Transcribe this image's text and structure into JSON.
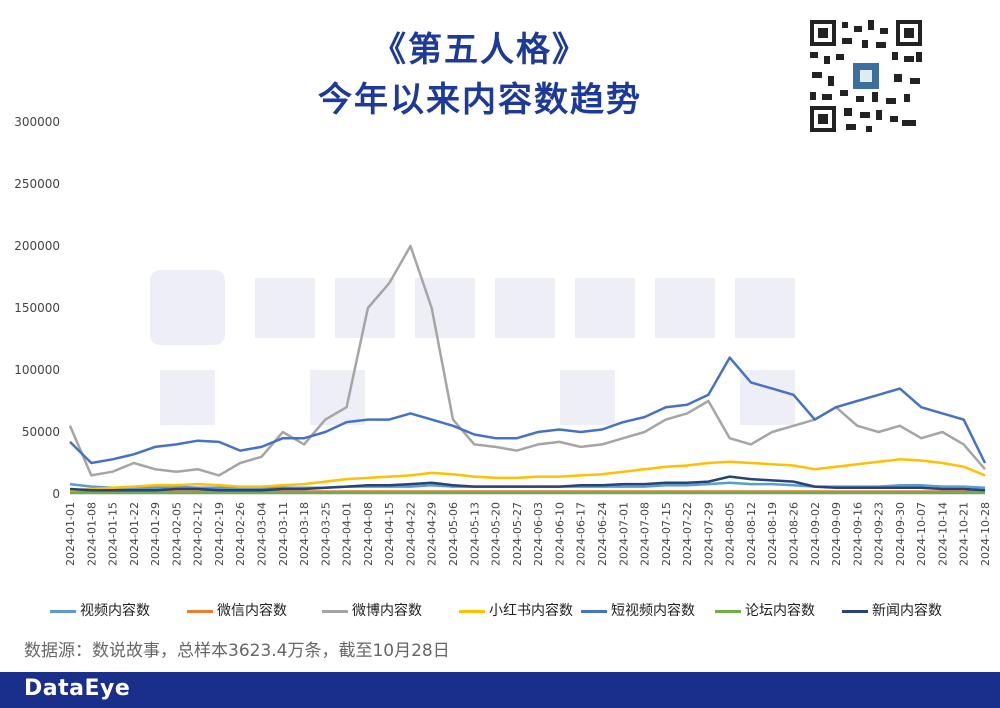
{
  "title_line1": "《第五人格》",
  "title_line2": "今年以来内容数趋势",
  "source": "数据源：数说故事，总样本3623.4万条，截至10月28日",
  "brand": "DataEye",
  "chart_data": {
    "type": "line",
    "ylim": [
      0,
      300000
    ],
    "yticks": [
      "0",
      "50000",
      "100000",
      "150000",
      "200000",
      "250000",
      "300000"
    ],
    "xticks": [
      "2024-01-01",
      "2024-01-08",
      "2024-01-15",
      "2024-01-22",
      "2024-01-29",
      "2024-02-05",
      "2024-02-12",
      "2024-02-19",
      "2024-02-26",
      "2024-03-04",
      "2024-03-11",
      "2024-03-18",
      "2024-03-25",
      "2024-04-01",
      "2024-04-08",
      "2024-04-15",
      "2024-04-22",
      "2024-04-29",
      "2024-05-06",
      "2024-05-13",
      "2024-05-20",
      "2024-05-27",
      "2024-06-03",
      "2024-06-10",
      "2024-06-17",
      "2024-06-24",
      "2024-07-01",
      "2024-07-08",
      "2024-07-15",
      "2024-07-22",
      "2024-07-29",
      "2024-08-05",
      "2024-08-12",
      "2024-08-19",
      "2024-08-26",
      "2024-09-02",
      "2024-09-09",
      "2024-09-16",
      "2024-09-23",
      "2024-09-30",
      "2024-10-07",
      "2024-10-14",
      "2024-10-21",
      "2024-10-28"
    ],
    "grid": false,
    "legend_position": "bottom",
    "series": [
      {
        "name": "视频内容数",
        "color": "#5b9bd5",
        "values": [
          8000,
          6000,
          5000,
          5000,
          5000,
          6000,
          5000,
          5000,
          5000,
          5000,
          5000,
          5000,
          5000,
          6000,
          6000,
          6000,
          6000,
          7000,
          6000,
          6000,
          6000,
          6000,
          6000,
          6000,
          6000,
          6000,
          6000,
          6000,
          7000,
          7000,
          8000,
          9000,
          8000,
          8000,
          7000,
          6000,
          6000,
          6000,
          6000,
          7000,
          7000,
          6000,
          6000,
          5000
        ]
      },
      {
        "name": "微信内容数",
        "color": "#ed7d31",
        "values": [
          2000,
          2000,
          2000,
          2000,
          2000,
          2000,
          2000,
          2000,
          2000,
          2000,
          2000,
          2000,
          2000,
          2000,
          2000,
          2000,
          2000,
          2000,
          2000,
          2000,
          2000,
          2000,
          2000,
          2000,
          2000,
          2000,
          2000,
          2000,
          2000,
          2000,
          2000,
          2000,
          2000,
          2000,
          2000,
          2000,
          2000,
          2000,
          2000,
          2000,
          2000,
          2000,
          2000,
          2000
        ]
      },
      {
        "name": "微博内容数",
        "color": "#a5a5a5",
        "values": [
          55000,
          15000,
          18000,
          25000,
          20000,
          18000,
          20000,
          15000,
          25000,
          30000,
          50000,
          40000,
          60000,
          70000,
          150000,
          170000,
          200000,
          150000,
          60000,
          40000,
          38000,
          35000,
          40000,
          42000,
          38000,
          40000,
          45000,
          50000,
          60000,
          65000,
          75000,
          45000,
          40000,
          50000,
          55000,
          60000,
          70000,
          55000,
          50000,
          55000,
          45000,
          50000,
          40000,
          20000
        ]
      },
      {
        "name": "小红书内容数",
        "color": "#ffc000",
        "values": [
          3000,
          4000,
          5000,
          6000,
          7000,
          7000,
          8000,
          7000,
          6000,
          6000,
          7000,
          8000,
          10000,
          12000,
          13000,
          14000,
          15000,
          17000,
          16000,
          14000,
          13000,
          13000,
          14000,
          14000,
          15000,
          16000,
          18000,
          20000,
          22000,
          23000,
          25000,
          26000,
          25000,
          24000,
          23000,
          20000,
          22000,
          24000,
          26000,
          28000,
          27000,
          25000,
          22000,
          15000
        ]
      },
      {
        "name": "短视频内容数",
        "color": "#4472c4",
        "values": [
          42000,
          25000,
          28000,
          32000,
          38000,
          40000,
          43000,
          42000,
          35000,
          38000,
          45000,
          45000,
          50000,
          58000,
          60000,
          60000,
          65000,
          60000,
          55000,
          48000,
          45000,
          45000,
          50000,
          52000,
          50000,
          52000,
          58000,
          62000,
          70000,
          72000,
          80000,
          110000,
          90000,
          85000,
          80000,
          60000,
          70000,
          75000,
          80000,
          85000,
          70000,
          65000,
          60000,
          25000
        ]
      },
      {
        "name": "论坛内容数",
        "color": "#70ad47",
        "values": [
          1000,
          1000,
          1000,
          1000,
          1000,
          1000,
          1000,
          1000,
          1000,
          1000,
          1000,
          1000,
          1000,
          1000,
          1000,
          1000,
          1000,
          1000,
          1000,
          1000,
          1000,
          1000,
          1000,
          1000,
          1000,
          1000,
          1000,
          1000,
          1000,
          1000,
          1000,
          1000,
          1000,
          1000,
          1000,
          1000,
          1000,
          1000,
          1000,
          1000,
          1000,
          1000,
          1000,
          1000
        ]
      },
      {
        "name": "新闻内容数",
        "color": "#264478",
        "values": [
          4000,
          3000,
          3000,
          3000,
          3000,
          4000,
          4000,
          3000,
          3000,
          3000,
          4000,
          4000,
          5000,
          6000,
          7000,
          7000,
          8000,
          9000,
          7000,
          6000,
          6000,
          6000,
          6000,
          6000,
          7000,
          7000,
          8000,
          8000,
          9000,
          9000,
          10000,
          14000,
          12000,
          11000,
          10000,
          6000,
          5000,
          5000,
          5000,
          5000,
          5000,
          4000,
          4000,
          3000
        ]
      }
    ]
  }
}
